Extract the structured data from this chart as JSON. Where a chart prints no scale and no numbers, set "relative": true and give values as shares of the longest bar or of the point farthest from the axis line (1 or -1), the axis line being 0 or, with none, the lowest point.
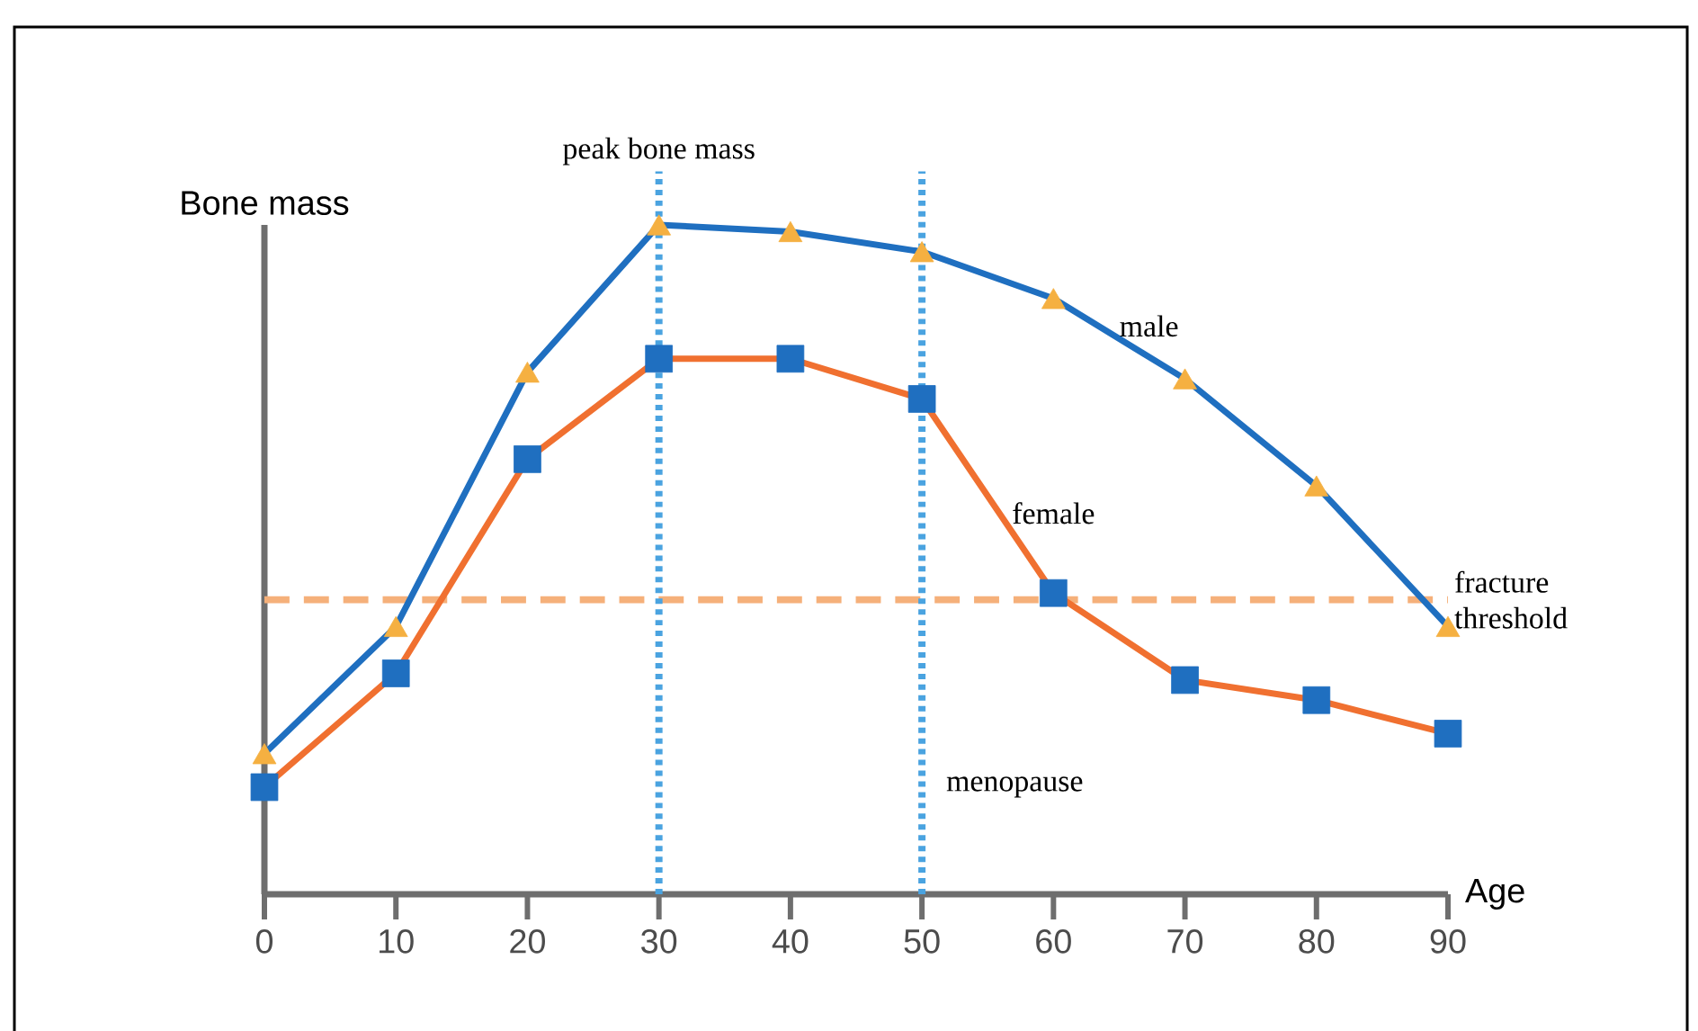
{
  "chart_data": {
    "type": "line",
    "relative": true,
    "xlabel": "Age",
    "ylabel": "Bone mass",
    "x": [
      0,
      10,
      20,
      30,
      40,
      50,
      60,
      70,
      80,
      90
    ],
    "xlim": [
      0,
      90
    ],
    "xticks": [
      0,
      10,
      20,
      30,
      40,
      50,
      60,
      70,
      80,
      90
    ],
    "grid": false,
    "legend": false,
    "line_style": "solid",
    "series": [
      {
        "name": "male",
        "color": "#1f6fc0",
        "marker": "triangle",
        "colors": [
          "#f5b041",
          "#f5b041",
          "#f5b041",
          "#f5b041",
          "#f5b041",
          "#f5b041",
          "#f5b041",
          "#f5b041",
          "#f5b041",
          "#f5b041"
        ],
        "values": [
          0.21,
          0.4,
          0.78,
          1,
          0.99,
          0.96,
          0.89,
          0.77,
          0.61,
          0.4
        ]
      },
      {
        "name": "female",
        "color": "#f07030",
        "marker": "square",
        "colors": [
          "#1f6fc0",
          "#1f6fc0",
          "#1f6fc0",
          "#1f6fc0",
          "#1f6fc0",
          "#1f6fc0",
          "#1f6fc0",
          "#1f6fc0",
          "#1f6fc0",
          "#1f6fc0"
        ],
        "values": [
          0.16,
          0.33,
          0.65,
          0.8,
          0.8,
          0.74,
          0.45,
          0.32,
          0.29,
          0.24
        ]
      }
    ],
    "ref_lines": [
      {
        "axis": "y",
        "value": 0.44,
        "label": "fracture threshold",
        "color": "#f5b07a",
        "line_style": "dashed"
      },
      {
        "axis": "x",
        "value": 30,
        "label": "peak bone mass",
        "color": "#4aa3e0",
        "line_style": "dotted"
      },
      {
        "axis": "x",
        "value": 50,
        "label": "menopause",
        "color": "#4aa3e0",
        "line_style": "dotted"
      }
    ]
  }
}
